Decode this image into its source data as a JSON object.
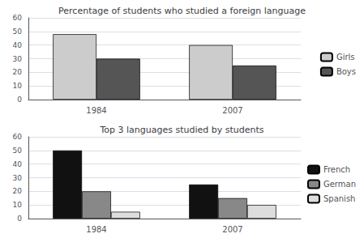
{
  "chart_data": [
    {
      "type": "bar",
      "title": "Percentage of students who studied a foreign language",
      "categories": [
        "1984",
        "2007"
      ],
      "series": [
        {
          "name": "Girls",
          "color": "#cccccc",
          "values": [
            48,
            40
          ]
        },
        {
          "name": "Boys",
          "color": "#555555",
          "values": [
            30,
            25
          ]
        }
      ],
      "ylim": [
        0,
        60
      ],
      "yticks": [
        0,
        10,
        20,
        30,
        40,
        50,
        60
      ],
      "grid": true,
      "legend": "right"
    },
    {
      "type": "bar",
      "title": "Top 3 languages studied by students",
      "categories": [
        "1984",
        "2007"
      ],
      "series": [
        {
          "name": "French",
          "color": "#111111",
          "values": [
            50,
            25
          ]
        },
        {
          "name": "German",
          "color": "#888888",
          "values": [
            20,
            15
          ]
        },
        {
          "name": "Spanish",
          "color": "#dddddd",
          "values": [
            5,
            10
          ]
        }
      ],
      "ylim": [
        0,
        60
      ],
      "yticks": [
        0,
        10,
        20,
        30,
        40,
        50,
        60
      ],
      "grid": true,
      "legend": "right"
    }
  ]
}
